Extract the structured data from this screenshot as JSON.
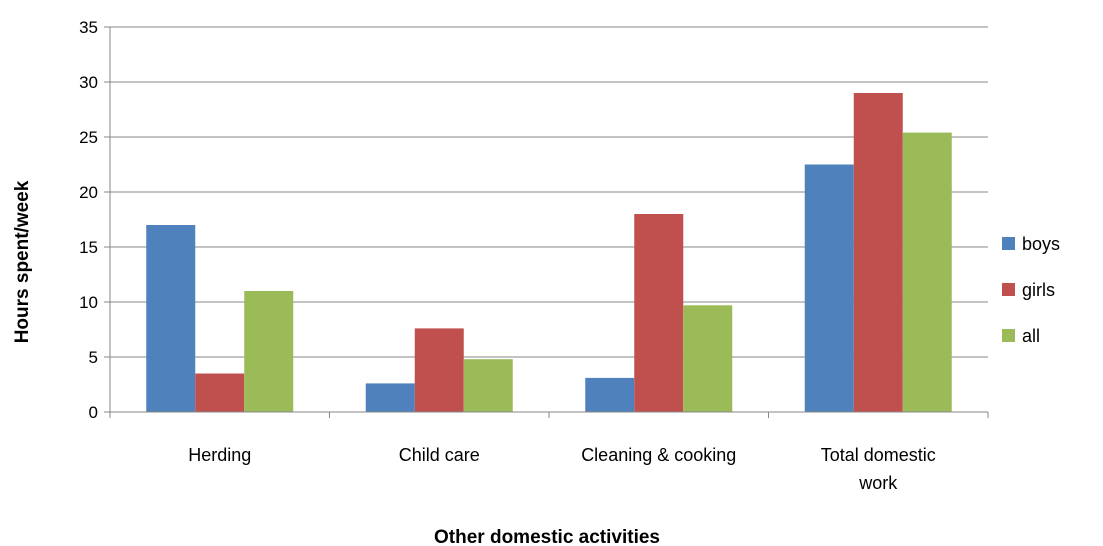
{
  "chart_data": {
    "type": "bar",
    "categories": [
      "Herding",
      "Child care",
      "Cleaning & cooking",
      "Total domestic work"
    ],
    "series": [
      {
        "name": "boys",
        "color": "#4F81BD",
        "values": [
          17.0,
          2.6,
          3.1,
          22.5
        ]
      },
      {
        "name": "girls",
        "color": "#C0504D",
        "values": [
          3.5,
          7.6,
          18.0,
          29.0
        ]
      },
      {
        "name": "all",
        "color": "#9BBB59",
        "values": [
          11.0,
          4.8,
          9.7,
          25.4
        ]
      }
    ],
    "title": "",
    "xlabel": "Other domestic activities",
    "ylabel": "Hours spent/week",
    "ylim": [
      0,
      35
    ],
    "yticks": [
      0,
      5,
      10,
      15,
      20,
      25,
      30,
      35
    ],
    "grid": true,
    "legend_position": "right"
  }
}
